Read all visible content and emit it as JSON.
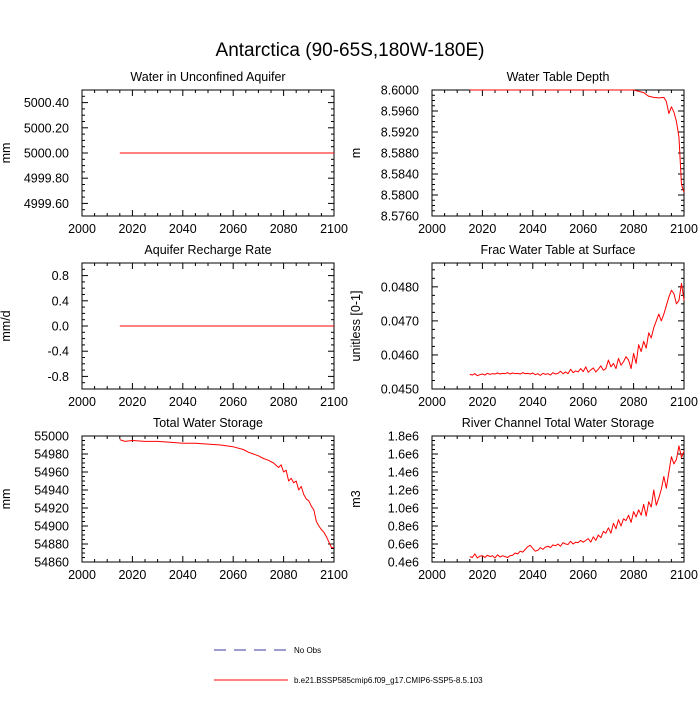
{
  "title": "Antarctica (90-65S,180W-180E)",
  "colors": {
    "model": "#ff0000",
    "obs": "#3a3aa0",
    "axis": "#000000"
  },
  "legend": [
    {
      "label": "No Obs",
      "style": "dashed",
      "color": "#3a3aa0"
    },
    {
      "label": "b.e21.BSSP585cmip6.f09_g17.CMIP6-SSP5-8.5.103",
      "style": "solid",
      "color": "#ff0000"
    }
  ],
  "chart_data": [
    {
      "type": "line",
      "title": "Water in Unconfined Aquifer",
      "ylabel": "mm",
      "xlim": [
        2000,
        2100
      ],
      "ylim": [
        4999.5,
        5000.5
      ],
      "xticks": [
        2000,
        2020,
        2040,
        2060,
        2080,
        2100
      ],
      "yticks": [
        4999.6,
        4999.8,
        5000.0,
        5000.2,
        5000.4
      ],
      "ytick_labels": [
        "4999.60",
        "4999.80",
        "5000.00",
        "5000.20",
        "5000.40"
      ],
      "series": [
        {
          "name": "b.e21.BSSP585cmip6.f09_g17.CMIP6-SSP5-8.5.103",
          "x": [
            2015,
            2100
          ],
          "y": [
            5000.0,
            5000.0
          ]
        }
      ]
    },
    {
      "type": "line",
      "title": "Water Table Depth",
      "ylabel": "m",
      "xlim": [
        2000,
        2100
      ],
      "ylim": [
        8.576,
        8.6
      ],
      "xticks": [
        2000,
        2020,
        2040,
        2060,
        2080,
        2100
      ],
      "yticks": [
        8.576,
        8.58,
        8.584,
        8.588,
        8.592,
        8.596,
        8.6
      ],
      "ytick_labels": [
        "8.5760",
        "8.5800",
        "8.5840",
        "8.5880",
        "8.5920",
        "8.5960",
        "8.6000"
      ],
      "series": [
        {
          "name": "b.e21.BSSP585cmip6.f09_g17.CMIP6-SSP5-8.5.103",
          "x": [
            2015,
            2080,
            2084,
            2086,
            2088,
            2090,
            2092,
            2093,
            2094,
            2095,
            2096,
            2097,
            2098,
            2099,
            2100
          ],
          "y": [
            8.6,
            8.6,
            8.5995,
            8.5988,
            8.5986,
            8.5985,
            8.5986,
            8.5978,
            8.5955,
            8.5968,
            8.5958,
            8.594,
            8.591,
            8.582,
            8.5805
          ]
        }
      ]
    },
    {
      "type": "line",
      "title": "Aquifer Recharge Rate",
      "ylabel": "mm/d",
      "xlim": [
        2000,
        2100
      ],
      "ylim": [
        -1.0,
        1.0
      ],
      "xticks": [
        2000,
        2020,
        2040,
        2060,
        2080,
        2100
      ],
      "yticks": [
        -0.8,
        -0.4,
        0.0,
        0.4,
        0.8
      ],
      "ytick_labels": [
        "-0.8",
        "-0.4",
        "0.0",
        "0.4",
        "0.8"
      ],
      "series": [
        {
          "name": "b.e21.BSSP585cmip6.f09_g17.CMIP6-SSP5-8.5.103",
          "x": [
            2015,
            2100
          ],
          "y": [
            0.0,
            0.0
          ]
        }
      ]
    },
    {
      "type": "line",
      "title": "Frac Water Table at Surface",
      "ylabel": "unitless [0-1]",
      "xlim": [
        2000,
        2100
      ],
      "ylim": [
        0.045,
        0.0487
      ],
      "xticks": [
        2000,
        2020,
        2040,
        2060,
        2080,
        2100
      ],
      "yticks": [
        0.045,
        0.046,
        0.047,
        0.048
      ],
      "ytick_labels": [
        "0.0450",
        "0.0460",
        "0.0470",
        "0.0480"
      ],
      "series": [
        {
          "name": "b.e21.BSSP585cmip6.f09_g17.CMIP6-SSP5-8.5.103",
          "x": [
            2015,
            2016,
            2017,
            2018,
            2019,
            2020,
            2021,
            2022,
            2023,
            2024,
            2025,
            2026,
            2027,
            2028,
            2029,
            2030,
            2031,
            2032,
            2033,
            2034,
            2035,
            2036,
            2037,
            2038,
            2039,
            2040,
            2041,
            2042,
            2043,
            2044,
            2045,
            2046,
            2047,
            2048,
            2049,
            2050,
            2051,
            2052,
            2053,
            2054,
            2055,
            2056,
            2057,
            2058,
            2059,
            2060,
            2061,
            2062,
            2063,
            2064,
            2065,
            2066,
            2067,
            2068,
            2069,
            2070,
            2071,
            2072,
            2073,
            2074,
            2075,
            2076,
            2077,
            2078,
            2079,
            2080,
            2081,
            2082,
            2083,
            2084,
            2085,
            2086,
            2087,
            2088,
            2089,
            2090,
            2091,
            2092,
            2093,
            2094,
            2095,
            2096,
            2097,
            2098,
            2099,
            2100
          ],
          "y": [
            0.04543,
            0.04541,
            0.04545,
            0.04539,
            0.04542,
            0.04544,
            0.04541,
            0.04546,
            0.04543,
            0.04545,
            0.04544,
            0.04547,
            0.04544,
            0.04546,
            0.04545,
            0.04548,
            0.04544,
            0.04547,
            0.04545,
            0.04546,
            0.04544,
            0.04548,
            0.04545,
            0.04546,
            0.04544,
            0.04547,
            0.04542,
            0.04545,
            0.0454,
            0.04546,
            0.04543,
            0.04545,
            0.04541,
            0.04548,
            0.04544,
            0.04546,
            0.04552,
            0.04545,
            0.0455,
            0.04545,
            0.04558,
            0.04548,
            0.04553,
            0.0455,
            0.0456,
            0.04551,
            0.04565,
            0.04549,
            0.04556,
            0.04562,
            0.0455,
            0.04558,
            0.04568,
            0.04555,
            0.0456,
            0.04585,
            0.04565,
            0.04575,
            0.0456,
            0.0459,
            0.0457,
            0.0458,
            0.04595,
            0.04585,
            0.0456,
            0.04605,
            0.04575,
            0.0463,
            0.0461,
            0.0464,
            0.0462,
            0.04665,
            0.0465,
            0.0468,
            0.047,
            0.0472,
            0.047,
            0.0472,
            0.04745,
            0.0477,
            0.0479,
            0.0478,
            0.0475,
            0.0476,
            0.0481,
            0.0476
          ]
        }
      ]
    },
    {
      "type": "line",
      "title": "Total Water Storage",
      "ylabel": "mm",
      "xlim": [
        2000,
        2100
      ],
      "ylim": [
        54860,
        55000
      ],
      "xticks": [
        2000,
        2020,
        2040,
        2060,
        2080,
        2100
      ],
      "yticks": [
        54860,
        54880,
        54900,
        54920,
        54940,
        54960,
        54980,
        55000
      ],
      "ytick_labels": [
        "54860",
        "54880",
        "54900",
        "54920",
        "54940",
        "54960",
        "54980",
        "55000"
      ],
      "series": [
        {
          "name": "b.e21.BSSP585cmip6.f09_g17.CMIP6-SSP5-8.5.103",
          "x": [
            2015,
            2017,
            2020,
            2025,
            2030,
            2035,
            2040,
            2045,
            2050,
            2055,
            2060,
            2064,
            2066,
            2068,
            2070,
            2072,
            2074,
            2076,
            2078,
            2079,
            2080,
            2081,
            2082,
            2083,
            2084,
            2085,
            2086,
            2087,
            2088,
            2089,
            2090,
            2091,
            2092,
            2093,
            2094,
            2095,
            2096,
            2097,
            2098,
            2099,
            2100
          ],
          "y": [
            54996,
            54994,
            54995,
            54994,
            54994,
            54993,
            54992,
            54992,
            54991,
            54990,
            54988,
            54985,
            54982,
            54980,
            54978,
            54975,
            54973,
            54970,
            54965,
            54968,
            54960,
            54962,
            54950,
            54953,
            54948,
            54950,
            54940,
            54944,
            54935,
            54930,
            54928,
            54922,
            54918,
            54905,
            54900,
            54896,
            54893,
            54888,
            54882,
            54876,
            54876
          ]
        }
      ]
    },
    {
      "type": "line",
      "title": "River Channel Total Water Storage",
      "ylabel": "m3",
      "xlim": [
        2000,
        2100
      ],
      "ylim": [
        400000,
        1800000
      ],
      "xticks": [
        2000,
        2020,
        2040,
        2060,
        2080,
        2100
      ],
      "yticks": [
        400000,
        600000,
        800000,
        1000000,
        1200000,
        1400000,
        1600000,
        1800000
      ],
      "ytick_labels": [
        "0.4e6",
        "0.6e6",
        "0.8e6",
        "1.0e6",
        "1.2e6",
        "1.4e6",
        "1.6e6",
        "1.8e6"
      ],
      "series": [
        {
          "name": "b.e21.BSSP585cmip6.f09_g17.CMIP6-SSP5-8.5.103",
          "x": [
            2015,
            2016,
            2017,
            2018,
            2019,
            2020,
            2021,
            2022,
            2023,
            2024,
            2025,
            2026,
            2027,
            2028,
            2029,
            2030,
            2031,
            2032,
            2033,
            2034,
            2035,
            2036,
            2037,
            2038,
            2039,
            2040,
            2041,
            2042,
            2043,
            2044,
            2045,
            2046,
            2047,
            2048,
            2049,
            2050,
            2051,
            2052,
            2053,
            2054,
            2055,
            2056,
            2057,
            2058,
            2059,
            2060,
            2061,
            2062,
            2063,
            2064,
            2065,
            2066,
            2067,
            2068,
            2069,
            2070,
            2071,
            2072,
            2073,
            2074,
            2075,
            2076,
            2077,
            2078,
            2079,
            2080,
            2081,
            2082,
            2083,
            2084,
            2085,
            2086,
            2087,
            2088,
            2089,
            2090,
            2091,
            2092,
            2093,
            2094,
            2095,
            2096,
            2097,
            2098,
            2099,
            2100
          ],
          "y": [
            460000,
            450000,
            490000,
            445000,
            465000,
            470000,
            450000,
            475000,
            460000,
            470000,
            445000,
            480000,
            455000,
            470000,
            460000,
            450000,
            470000,
            475000,
            500000,
            490000,
            520000,
            510000,
            540000,
            570000,
            585000,
            550000,
            520000,
            530000,
            560000,
            540000,
            565000,
            575000,
            560000,
            590000,
            580000,
            600000,
            575000,
            615000,
            600000,
            595000,
            630000,
            600000,
            620000,
            615000,
            640000,
            620000,
            640000,
            660000,
            620000,
            680000,
            640000,
            700000,
            670000,
            740000,
            720000,
            780000,
            720000,
            830000,
            770000,
            870000,
            800000,
            880000,
            860000,
            920000,
            840000,
            960000,
            900000,
            980000,
            920000,
            1040000,
            910000,
            1070000,
            1010000,
            1200000,
            1030000,
            1110000,
            1210000,
            1350000,
            1220000,
            1400000,
            1570000,
            1490000,
            1540000,
            1690000,
            1560000,
            1630000
          ]
        }
      ]
    }
  ]
}
